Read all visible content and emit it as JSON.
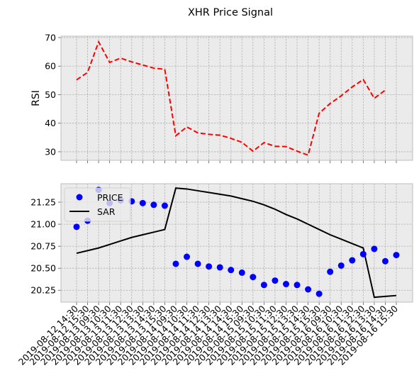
{
  "chart_data": [
    {
      "type": "line",
      "title": "XHR Price Signal",
      "xlabel": "",
      "ylabel": "RSI",
      "ylim": [
        27,
        70.5
      ],
      "yticks": [
        30,
        40,
        50,
        60,
        70
      ],
      "grid": true,
      "legend": null,
      "series": [
        {
          "style": "dashed",
          "color": "#ff0000",
          "values": [
            55.2,
            57.8,
            68.5,
            61.3,
            62.8,
            61.5,
            60.4,
            59.3,
            58.9,
            35.6,
            38.7,
            36.6,
            36.1,
            35.8,
            34.7,
            33.3,
            30.2,
            33.2,
            31.9,
            31.8,
            30.2,
            28.8,
            43.5,
            46.9,
            49.6,
            52.7,
            55.3,
            48.7,
            51.6
          ]
        }
      ]
    },
    {
      "type": "scatter",
      "xlabel": "",
      "ylabel": "",
      "ylim": [
        20.115,
        21.46
      ],
      "yticks": [
        "20.25",
        "20.50",
        "20.75",
        "21.00",
        "21.25"
      ],
      "grid": true,
      "legend_position": "upper-left",
      "x": [
        "2019-08-12 14:30",
        "2019-08-12 15:30",
        "2019-08-13 09:30",
        "2019-08-13 10:30",
        "2019-08-13 11:30",
        "2019-08-13 12:30",
        "2019-08-13 13:30",
        "2019-08-13 14:30",
        "2019-08-13 15:30",
        "2019-08-14 09:30",
        "2019-08-14 10:30",
        "2019-08-14 11:30",
        "2019-08-14 12:30",
        "2019-08-14 13:30",
        "2019-08-14 14:30",
        "2019-08-14 15:30",
        "2019-08-15 09:30",
        "2019-08-15 10:30",
        "2019-08-15 11:30",
        "2019-08-15 12:30",
        "2019-08-15 13:30",
        "2019-08-15 14:30",
        "2019-08-15 15:30",
        "2019-08-16 09:30",
        "2019-08-16 10:30",
        "2019-08-16 11:30",
        "2019-08-16 12:30",
        "2019-08-16 13:30",
        "2019-08-16 14:30",
        "2019-08-16 15:30"
      ],
      "series": [
        {
          "name": "PRICE",
          "kind": "scatter",
          "color": "#0000ff",
          "values": [
            20.97,
            21.04,
            21.39,
            21.24,
            21.27,
            21.26,
            21.24,
            21.22,
            21.21,
            20.55,
            20.63,
            20.55,
            20.52,
            20.51,
            20.48,
            20.45,
            20.4,
            20.31,
            20.36,
            20.32,
            20.31,
            20.26,
            20.21,
            20.46,
            20.53,
            20.59,
            20.66,
            20.72,
            20.58,
            20.65
          ]
        },
        {
          "name": "SAR",
          "kind": "line",
          "color": "#000000",
          "values": [
            20.67,
            20.7,
            20.73,
            20.77,
            20.81,
            20.85,
            20.88,
            20.91,
            20.94,
            21.41,
            21.4,
            21.38,
            21.36,
            21.34,
            21.32,
            21.29,
            21.26,
            21.22,
            21.17,
            21.11,
            21.06,
            21.0,
            20.94,
            20.88,
            20.83,
            20.78,
            20.73,
            20.17,
            20.18,
            20.19
          ]
        }
      ]
    }
  ]
}
